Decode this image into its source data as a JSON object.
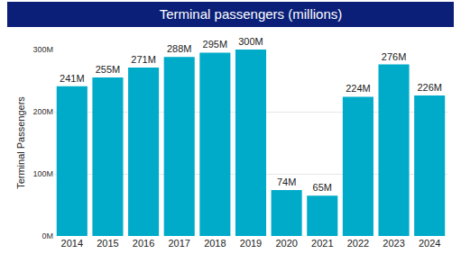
{
  "chart_data": {
    "type": "bar",
    "title": "Terminal passengers (millions)",
    "ylabel": "Terminal Passengers",
    "categories": [
      "2014",
      "2015",
      "2016",
      "2017",
      "2018",
      "2019",
      "2020",
      "2021",
      "2022",
      "2023",
      "2024"
    ],
    "values": [
      241,
      255,
      271,
      288,
      295,
      300,
      74,
      65,
      224,
      276,
      226
    ],
    "value_labels": [
      "241M",
      "255M",
      "271M",
      "288M",
      "295M",
      "300M",
      "74M",
      "65M",
      "224M",
      "276M",
      "226M"
    ],
    "color": "#00abc9",
    "ylim": [
      0,
      300
    ],
    "yticks": [
      {
        "value": 0,
        "label": "0M"
      },
      {
        "value": 100,
        "label": "100M"
      },
      {
        "value": 200,
        "label": "200M"
      },
      {
        "value": 300,
        "label": "300M"
      }
    ],
    "grid": true,
    "data_labels": true
  }
}
